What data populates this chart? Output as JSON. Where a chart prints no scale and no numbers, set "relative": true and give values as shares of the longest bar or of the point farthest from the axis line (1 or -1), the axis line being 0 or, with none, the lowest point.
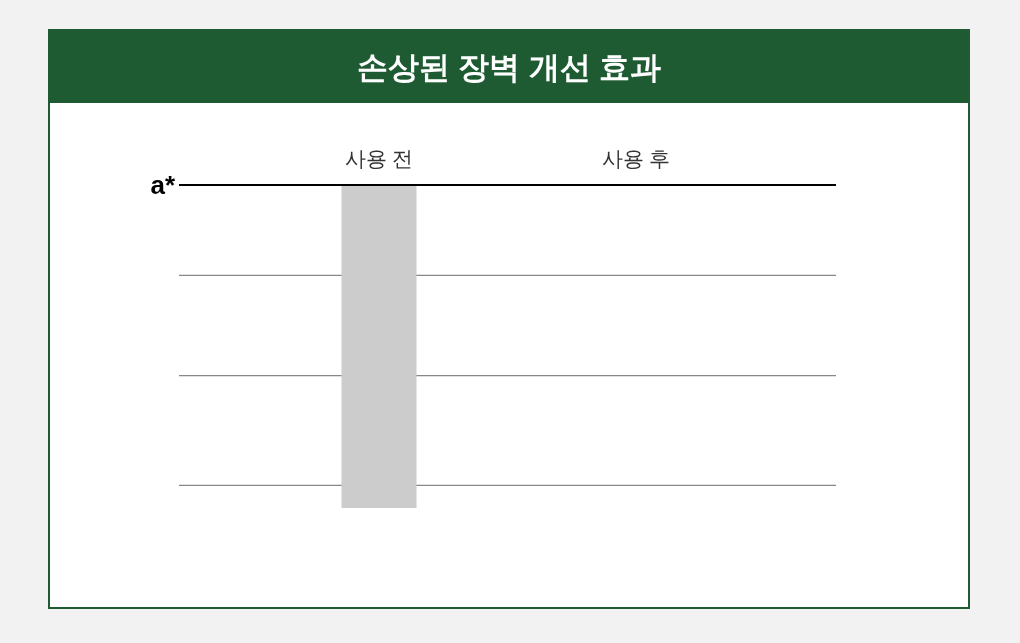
{
  "chart_data": {
    "type": "bar",
    "title": "손상된 장벽 개선 효과",
    "ylabel": "a*",
    "categories": [
      "사용 전",
      "사용 후"
    ],
    "values": [
      -1,
      null
    ],
    "color": "#cccccc",
    "relative": true,
    "ref_lines": [
      {
        "axis": "y",
        "value": -0.28,
        "color": "#888888"
      },
      {
        "axis": "y",
        "value": -0.59,
        "color": "#888888"
      },
      {
        "axis": "y",
        "value": -0.93,
        "color": "#888888"
      }
    ]
  }
}
